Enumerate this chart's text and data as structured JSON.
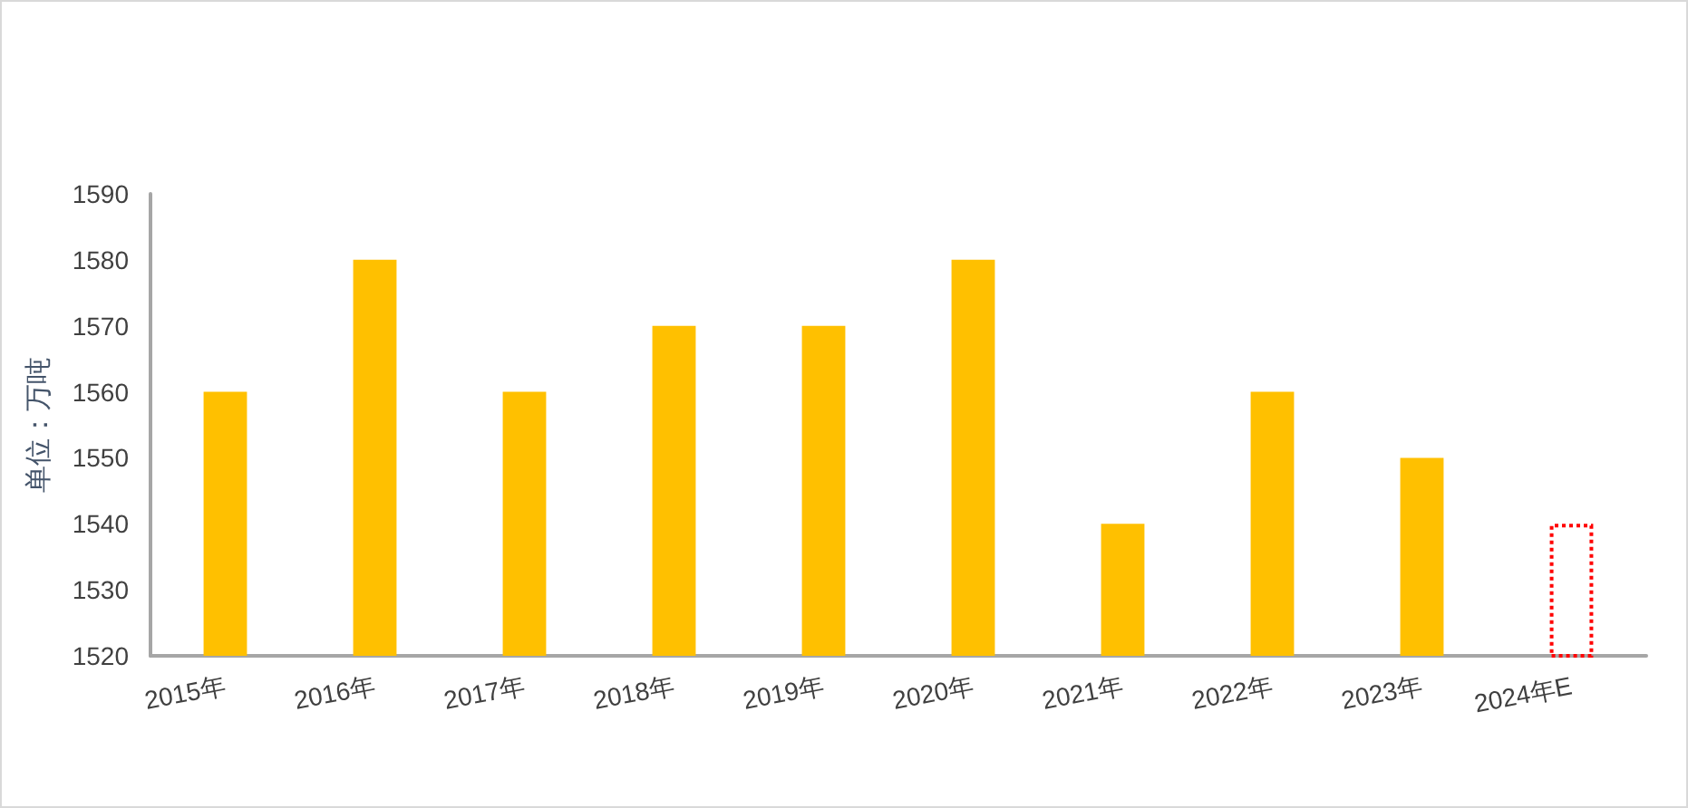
{
  "chart_data": {
    "type": "bar",
    "ylabel": "单位：万吨",
    "categories": [
      "2015年",
      "2016年",
      "2017年",
      "2018年",
      "2019年",
      "2020年",
      "2021年",
      "2022年",
      "2023年",
      "2024年E"
    ],
    "series": [
      {
        "color": "#ffc000",
        "values": [
          1560,
          1580,
          1560,
          1570,
          1570,
          1580,
          1540,
          1560,
          1550,
          null
        ]
      },
      {
        "color": "#ff0000",
        "line_style": "dotted",
        "values": [
          null,
          null,
          null,
          null,
          null,
          null,
          null,
          null,
          null,
          1540
        ]
      }
    ],
    "ylim": [
      1520,
      1590
    ],
    "yticks": [
      1520,
      1530,
      1540,
      1550,
      1560,
      1570,
      1580,
      1590
    ],
    "grid": false
  }
}
